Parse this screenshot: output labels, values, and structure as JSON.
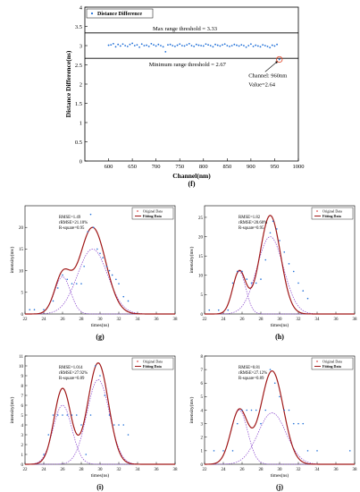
{
  "panel_f": {
    "label": "(f)",
    "legend": "Distance Difference",
    "max_label": "Max range threshold = 3.33",
    "min_label": "Minimum range threshold = 2.67",
    "annotation": [
      "Channel: 960nm",
      "Value=2.64"
    ],
    "xlabel": "Channel(nm)",
    "ylabel": "Distance Difference(ns)",
    "xticks": [
      "600",
      "650",
      "700",
      "750",
      "800",
      "850",
      "900",
      "950",
      "1000"
    ],
    "yticks": [
      "0",
      "0.5",
      "1",
      "1.5",
      "2",
      "2.5",
      "3",
      "3.5",
      "4"
    ]
  },
  "panels": [
    {
      "label": "(g)",
      "xlabel": "times(ns)",
      "ylabel": "intensity(mv)",
      "stats": [
        "RMSE=1.49",
        "rRMSE=21.10%",
        "R-square=0.95"
      ],
      "legend": [
        "Original Data",
        "Fitting Data"
      ],
      "xticks": [
        "22",
        "24",
        "26",
        "28",
        "30",
        "32",
        "34",
        "36",
        "38"
      ],
      "yticks": [
        "0",
        "5",
        "10",
        "15",
        "20"
      ]
    },
    {
      "label": "(h)",
      "xlabel": "times(ns)",
      "ylabel": "intensity(mv)",
      "stats": [
        "RMSE=1.82",
        "rRMSE=20.60%",
        "R-square=0.95"
      ],
      "legend": [
        "Original Data",
        "Fitting Data"
      ],
      "xticks": [
        "22",
        "24",
        "26",
        "28",
        "30",
        "32",
        "34",
        "36",
        "38"
      ],
      "yticks": [
        "0",
        "5",
        "10",
        "15",
        "20",
        "25"
      ]
    },
    {
      "label": "(i)",
      "xlabel": "times(ns)",
      "ylabel": "intensity(mv)",
      "stats": [
        "RMSE=1.014",
        "rRMSE=27.92%",
        "R-square=0.89"
      ],
      "legend": [
        "Original Data",
        "Fitting Data"
      ],
      "xticks": [
        "22",
        "24",
        "26",
        "28",
        "30",
        "32",
        "34",
        "36",
        "38"
      ],
      "yticks": [
        "0",
        "1",
        "2",
        "3",
        "4",
        "5",
        "6",
        "7",
        "8",
        "9",
        "10",
        "11"
      ]
    },
    {
      "label": "(j)",
      "xlabel": "times(ns)",
      "ylabel": "intensity(mv)",
      "stats": [
        "RMSE=0.81",
        "rRMSE=27.12%",
        "R-square=0.89"
      ],
      "legend": [
        "Original Data",
        "Fitting Data"
      ],
      "xticks": [
        "22",
        "24",
        "26",
        "28",
        "30",
        "32",
        "34",
        "36",
        "38"
      ],
      "yticks": [
        "0",
        "1",
        "2",
        "3",
        "4",
        "5",
        "6",
        "7",
        "8"
      ]
    }
  ],
  "colors": {
    "points": "#1f6fd8",
    "fit": "#a01818",
    "component": "#8844cc",
    "original_dot": "#e05050",
    "threshold": "#000000",
    "highlight": "#e04020"
  },
  "chart_data": [
    {
      "type": "scatter",
      "xlabel": "Channel(nm)",
      "ylabel": "Distance Difference(ns)",
      "xlim": [
        550,
        1000
      ],
      "ylim": [
        0,
        4
      ],
      "series": [
        {
          "name": "Distance Difference",
          "x": [
            600,
            605,
            610,
            615,
            620,
            625,
            630,
            635,
            640,
            645,
            650,
            655,
            660,
            665,
            670,
            675,
            680,
            685,
            690,
            695,
            700,
            705,
            710,
            715,
            720,
            725,
            730,
            735,
            740,
            745,
            750,
            755,
            760,
            765,
            770,
            775,
            780,
            785,
            790,
            795,
            800,
            805,
            810,
            815,
            820,
            825,
            830,
            835,
            840,
            845,
            850,
            855,
            860,
            865,
            870,
            875,
            880,
            885,
            890,
            895,
            900,
            905,
            910,
            915,
            920,
            925,
            930,
            935,
            940,
            945,
            950,
            955,
            960
          ],
          "y": [
            3.01,
            3.02,
            3.05,
            2.97,
            3.03,
            2.99,
            3.04,
            3.0,
            2.98,
            3.03,
            3.06,
            3.0,
            3.02,
            2.96,
            3.04,
            3.0,
            3.01,
            2.98,
            3.05,
            3.02,
            2.99,
            3.03,
            3.0,
            2.97,
            2.84,
            3.02,
            3.03,
            3.0,
            2.98,
            3.01,
            3.04,
            3.0,
            2.99,
            3.02,
            3.05,
            3.0,
            2.98,
            3.03,
            3.01,
            3.0,
            2.99,
            3.04,
            3.02,
            3.0,
            2.97,
            3.03,
            3.01,
            2.99,
            3.02,
            3.04,
            3.0,
            2.98,
            3.0,
            3.03,
            3.01,
            2.99,
            3.02,
            3.0,
            2.96,
            3.0,
            3.04,
            2.98,
            3.01,
            2.99,
            2.97,
            3.02,
            3.0,
            2.98,
            2.95,
            3.01,
            2.99,
            3.03,
            2.64
          ]
        }
      ],
      "thresholds": [
        3.33,
        2.67
      ]
    },
    {
      "type": "line",
      "xlim": [
        22,
        38
      ],
      "ylim": [
        0,
        25
      ],
      "gaussians": [
        [
          8.6,
          26.0,
          0.85
        ],
        [
          15.0,
          29.2,
          1.6
        ]
      ],
      "fit": [
        [
          8.6,
          26.0,
          0.85
        ],
        [
          20.0,
          29.2,
          1.4
        ]
      ],
      "original_x": [
        22.5,
        23,
        24,
        25,
        25.5,
        26,
        26.5,
        27,
        27.5,
        28,
        28.3,
        28.7,
        29,
        29.3,
        29.7,
        30,
        30.3,
        30.7,
        31,
        31.3,
        31.7,
        32,
        32.5,
        33
      ],
      "original_y": [
        1,
        1,
        1,
        3,
        6,
        9,
        8,
        7,
        7,
        7,
        11,
        19,
        23,
        20,
        15,
        14,
        13,
        11,
        10,
        9,
        8,
        7,
        4,
        3
      ]
    },
    {
      "type": "line",
      "xlim": [
        22,
        38
      ],
      "ylim": [
        0,
        28
      ],
      "gaussians": [
        [
          11.0,
          25.7,
          0.7
        ],
        [
          20.0,
          29.0,
          1.4
        ]
      ],
      "fit": [
        [
          11.0,
          25.7,
          0.7
        ],
        [
          25.5,
          29.0,
          1.1
        ]
      ],
      "original_x": [
        22.5,
        23.5,
        24.5,
        25,
        25.5,
        26,
        26.5,
        27,
        27.5,
        28,
        28.5,
        29,
        29.3,
        29.7,
        30,
        30.5,
        31,
        31.5,
        32,
        32.5,
        33
      ],
      "original_y": [
        1,
        1,
        1,
        8,
        11,
        11,
        9,
        8,
        8,
        9,
        14,
        21,
        24,
        22,
        19,
        16,
        13,
        11,
        8,
        6,
        4
      ]
    },
    {
      "type": "line",
      "xlim": [
        22,
        38
      ],
      "ylim": [
        0,
        11
      ],
      "gaussians": [
        [
          6.0,
          26.0,
          1.0
        ],
        [
          8.6,
          29.8,
          1.2
        ]
      ],
      "fit": [
        [
          7.7,
          26.0,
          0.9
        ],
        [
          10.3,
          29.8,
          1.1
        ]
      ],
      "original_x": [
        24,
        24.5,
        25,
        25.5,
        26,
        26.5,
        27,
        27.5,
        28,
        28.5,
        29,
        29.5,
        30,
        30.5,
        31,
        31.5,
        32,
        32.5,
        33
      ],
      "original_y": [
        1,
        3,
        5,
        5,
        5,
        5,
        5,
        5,
        4,
        1,
        5,
        10,
        9,
        7,
        5,
        4,
        4,
        4,
        3
      ]
    },
    {
      "type": "line",
      "xlim": [
        22,
        38
      ],
      "ylim": [
        0,
        8
      ],
      "gaussians": [
        [
          4.0,
          25.7,
          0.9
        ],
        [
          3.8,
          29.2,
          1.5
        ]
      ],
      "fit": [
        [
          4.0,
          25.7,
          0.9
        ],
        [
          6.9,
          29.2,
          1.2
        ]
      ],
      "original_x": [
        23,
        24,
        25,
        25.5,
        26,
        26.5,
        27,
        27.5,
        28,
        28.5,
        29,
        29.5,
        30,
        30.5,
        31,
        31.5,
        32,
        32.5,
        33,
        34,
        37.5
      ],
      "original_y": [
        1,
        1,
        1,
        3,
        4,
        4,
        4,
        4,
        3,
        4,
        7,
        6,
        5,
        4,
        4,
        3,
        3,
        3,
        1,
        1,
        1
      ]
    }
  ]
}
